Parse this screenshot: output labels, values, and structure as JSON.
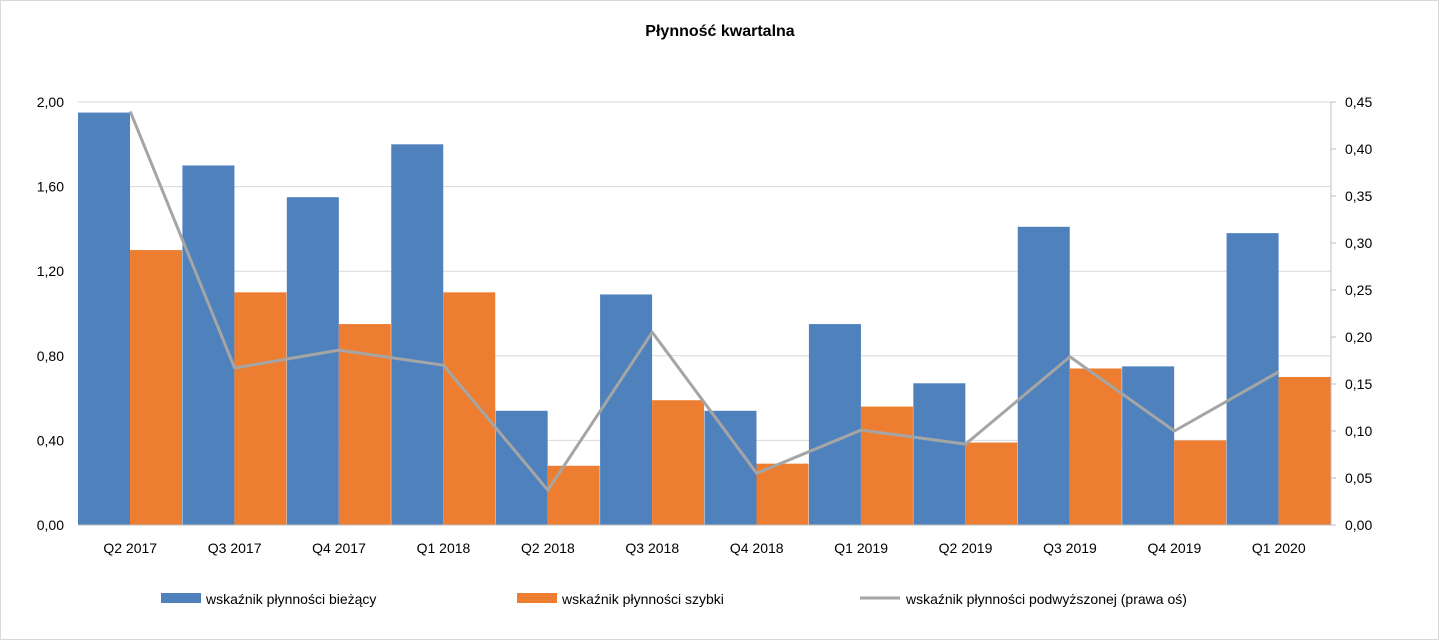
{
  "colors": {
    "series_current": "#4f81bd",
    "series_quick": "#ed7d31",
    "series_cash": "#a5a5a5",
    "gridline": "#d9d9d9",
    "axis": "#bfbfbf"
  },
  "chart_data": {
    "type": "bar",
    "title": "Płynność kwartalna",
    "categories": [
      "Q2 2017",
      "Q3 2017",
      "Q4 2017",
      "Q1 2018",
      "Q2 2018",
      "Q3 2018",
      "Q4 2018",
      "Q1 2019",
      "Q2 2019",
      "Q3 2019",
      "Q4 2019",
      "Q1 2020"
    ],
    "series": [
      {
        "name": "wskaźnik płynności bieżący",
        "type": "bar",
        "axis": "left",
        "values": [
          1.95,
          1.7,
          1.55,
          1.8,
          0.54,
          1.09,
          0.54,
          0.95,
          0.67,
          1.41,
          0.75,
          1.38
        ]
      },
      {
        "name": "wskaźnik płynności szybki",
        "type": "bar",
        "axis": "left",
        "values": [
          1.3,
          1.1,
          0.95,
          1.1,
          0.28,
          0.59,
          0.29,
          0.56,
          0.39,
          0.74,
          0.4,
          0.7
        ]
      },
      {
        "name": "wskaźnik płynności podwyższonej (prawa oś)",
        "type": "line",
        "axis": "right",
        "values": [
          0.44,
          0.167,
          0.186,
          0.17,
          0.037,
          0.205,
          0.055,
          0.101,
          0.086,
          0.179,
          0.1,
          0.163
        ]
      }
    ],
    "y_left": {
      "ylim": [
        0,
        2.0
      ],
      "tick_values": [
        0,
        0.4,
        0.8,
        1.2,
        1.6,
        2.0
      ],
      "tick_labels": [
        "0,00",
        "0,40",
        "0,80",
        "1,20",
        "1,60",
        "2,00"
      ]
    },
    "y_right": {
      "ylim": [
        0,
        0.45
      ],
      "tick_values": [
        0,
        0.05,
        0.1,
        0.15,
        0.2,
        0.25,
        0.3,
        0.35,
        0.4,
        0.45
      ],
      "tick_labels": [
        "0,00",
        "0,05",
        "0,10",
        "0,15",
        "0,20",
        "0,25",
        "0,30",
        "0,35",
        "0,40",
        "0,45"
      ]
    },
    "grid": true,
    "legend_position": "bottom"
  }
}
